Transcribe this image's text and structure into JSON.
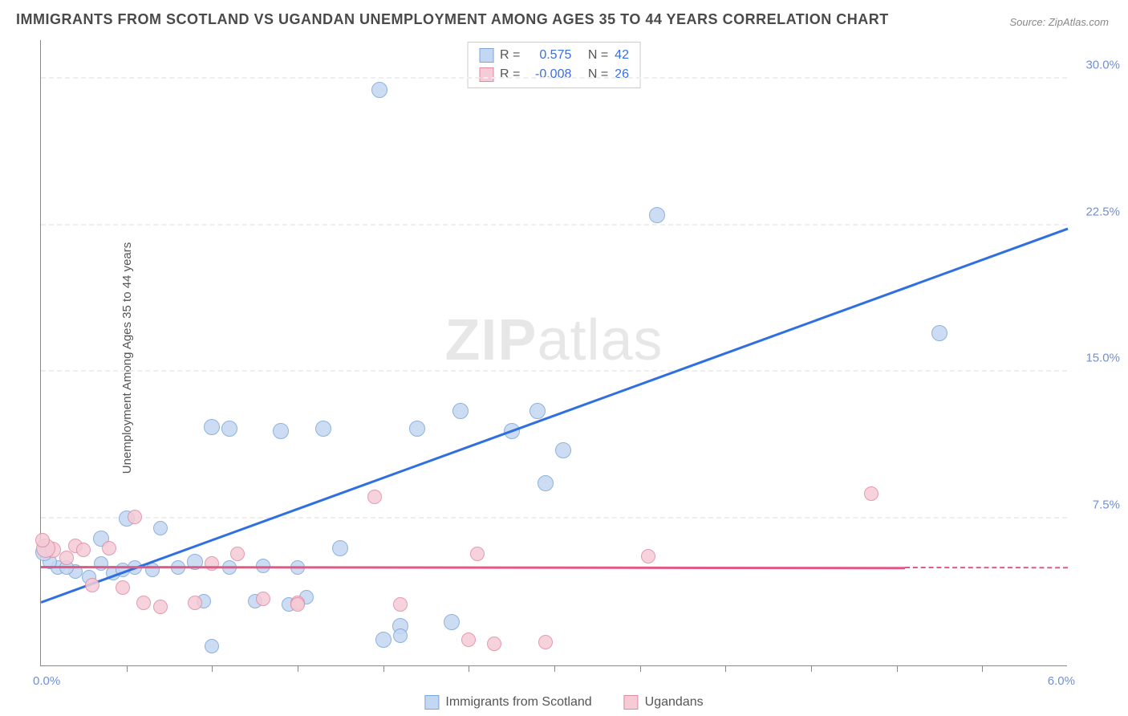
{
  "title": "IMMIGRANTS FROM SCOTLAND VS UGANDAN UNEMPLOYMENT AMONG AGES 35 TO 44 YEARS CORRELATION CHART",
  "source_prefix": "Source: ",
  "source_name": "ZipAtlas.com",
  "ylabel": "Unemployment Among Ages 35 to 44 years",
  "watermark_bold": "ZIP",
  "watermark_rest": "atlas",
  "chart": {
    "type": "scatter",
    "xlim": [
      0.0,
      6.0
    ],
    "ylim": [
      0.0,
      32.0
    ],
    "y_ticks": [
      7.5,
      15.0,
      22.5,
      30.0
    ],
    "y_tick_labels": [
      "7.5%",
      "15.0%",
      "22.5%",
      "30.0%"
    ],
    "x_tick_left": "0.0%",
    "x_tick_right": "6.0%",
    "x_minor_tick_step": 0.5,
    "background_color": "#ffffff",
    "grid_color": "#eeeeee",
    "marker_radius": 9,
    "marker_stroke_width": 1.5,
    "trend_line_width": 2.5,
    "series": [
      {
        "name": "Immigrants from Scotland",
        "fill": "#c4d7f2",
        "stroke": "#7ba5d8",
        "line_color": "#2f6fe0",
        "R": "0.575",
        "N": "42",
        "trend": {
          "x1": 0.0,
          "y1": 3.2,
          "x2": 6.0,
          "y2": 22.3
        },
        "points": [
          {
            "x": 1.98,
            "y": 29.4,
            "r": 10
          },
          {
            "x": 3.6,
            "y": 23.0,
            "r": 10
          },
          {
            "x": 5.25,
            "y": 17.0,
            "r": 10
          },
          {
            "x": 2.45,
            "y": 13.0,
            "r": 10
          },
          {
            "x": 2.75,
            "y": 12.0,
            "r": 10
          },
          {
            "x": 2.9,
            "y": 13.0,
            "r": 10
          },
          {
            "x": 2.2,
            "y": 12.1,
            "r": 10
          },
          {
            "x": 3.05,
            "y": 11.0,
            "r": 10
          },
          {
            "x": 2.95,
            "y": 9.3,
            "r": 10
          },
          {
            "x": 1.4,
            "y": 12.0,
            "r": 10
          },
          {
            "x": 1.65,
            "y": 12.1,
            "r": 10
          },
          {
            "x": 1.0,
            "y": 12.2,
            "r": 10
          },
          {
            "x": 1.1,
            "y": 12.1,
            "r": 10
          },
          {
            "x": 1.75,
            "y": 6.0,
            "r": 10
          },
          {
            "x": 2.4,
            "y": 2.2,
            "r": 10
          },
          {
            "x": 2.1,
            "y": 2.0,
            "r": 10
          },
          {
            "x": 2.1,
            "y": 1.5,
            "r": 9
          },
          {
            "x": 2.0,
            "y": 1.3,
            "r": 10
          },
          {
            "x": 1.0,
            "y": 1.0,
            "r": 9
          },
          {
            "x": 0.5,
            "y": 7.5,
            "r": 10
          },
          {
            "x": 0.7,
            "y": 7.0,
            "r": 9
          },
          {
            "x": 0.9,
            "y": 5.3,
            "r": 10
          },
          {
            "x": 0.55,
            "y": 5.0,
            "r": 9
          },
          {
            "x": 0.35,
            "y": 5.2,
            "r": 9
          },
          {
            "x": 0.2,
            "y": 4.8,
            "r": 9
          },
          {
            "x": 0.1,
            "y": 5.0,
            "r": 9
          },
          {
            "x": 0.05,
            "y": 5.3,
            "r": 9
          },
          {
            "x": 0.15,
            "y": 5.0,
            "r": 9
          },
          {
            "x": 0.42,
            "y": 4.7,
            "r": 9
          },
          {
            "x": 0.65,
            "y": 4.9,
            "r": 9
          },
          {
            "x": 0.28,
            "y": 4.5,
            "r": 9
          },
          {
            "x": 0.95,
            "y": 3.3,
            "r": 9
          },
          {
            "x": 1.25,
            "y": 3.3,
            "r": 9
          },
          {
            "x": 1.45,
            "y": 3.1,
            "r": 9
          },
          {
            "x": 1.55,
            "y": 3.5,
            "r": 9
          },
          {
            "x": 1.5,
            "y": 5.0,
            "r": 9
          },
          {
            "x": 1.3,
            "y": 5.1,
            "r": 9
          },
          {
            "x": 0.35,
            "y": 6.5,
            "r": 10
          },
          {
            "x": 0.8,
            "y": 5.0,
            "r": 9
          },
          {
            "x": 1.1,
            "y": 5.0,
            "r": 9
          },
          {
            "x": 0.48,
            "y": 4.9,
            "r": 9
          },
          {
            "x": 0.02,
            "y": 5.8,
            "r": 11
          }
        ]
      },
      {
        "name": "Ugandans",
        "fill": "#f5cbd6",
        "stroke": "#e08aa3",
        "line_color": "#e05a85",
        "R": "-0.008",
        "N": "26",
        "trend": {
          "x1": 0.0,
          "y1": 5.0,
          "x2": 5.05,
          "y2": 4.95
        },
        "trend_dash": {
          "x1": 5.05,
          "y1": 4.95,
          "x2": 6.0,
          "y2": 4.94
        },
        "points": [
          {
            "x": 4.85,
            "y": 8.8,
            "r": 9
          },
          {
            "x": 3.55,
            "y": 5.6,
            "r": 9
          },
          {
            "x": 2.55,
            "y": 5.7,
            "r": 9
          },
          {
            "x": 2.95,
            "y": 1.2,
            "r": 9
          },
          {
            "x": 2.65,
            "y": 1.1,
            "r": 9
          },
          {
            "x": 2.5,
            "y": 1.3,
            "r": 9
          },
          {
            "x": 2.1,
            "y": 3.1,
            "r": 9
          },
          {
            "x": 1.95,
            "y": 8.6,
            "r": 9
          },
          {
            "x": 1.3,
            "y": 3.4,
            "r": 9
          },
          {
            "x": 1.15,
            "y": 5.7,
            "r": 9
          },
          {
            "x": 1.5,
            "y": 3.2,
            "r": 9
          },
          {
            "x": 1.5,
            "y": 3.1,
            "r": 9
          },
          {
            "x": 0.7,
            "y": 3.0,
            "r": 9
          },
          {
            "x": 0.55,
            "y": 7.6,
            "r": 9
          },
          {
            "x": 0.4,
            "y": 6.0,
            "r": 9
          },
          {
            "x": 0.2,
            "y": 6.1,
            "r": 9
          },
          {
            "x": 0.15,
            "y": 5.5,
            "r": 9
          },
          {
            "x": 0.6,
            "y": 3.2,
            "r": 9
          },
          {
            "x": 0.48,
            "y": 4.0,
            "r": 9
          },
          {
            "x": 0.3,
            "y": 4.1,
            "r": 9
          },
          {
            "x": 0.07,
            "y": 5.9,
            "r": 10
          },
          {
            "x": 0.03,
            "y": 6.0,
            "r": 12
          },
          {
            "x": 0.01,
            "y": 6.4,
            "r": 9
          },
          {
            "x": 0.25,
            "y": 5.9,
            "r": 9
          },
          {
            "x": 0.9,
            "y": 3.2,
            "r": 9
          },
          {
            "x": 1.0,
            "y": 5.2,
            "r": 9
          }
        ]
      }
    ]
  },
  "legend": {
    "r_label": "R =",
    "n_label": "N ="
  }
}
